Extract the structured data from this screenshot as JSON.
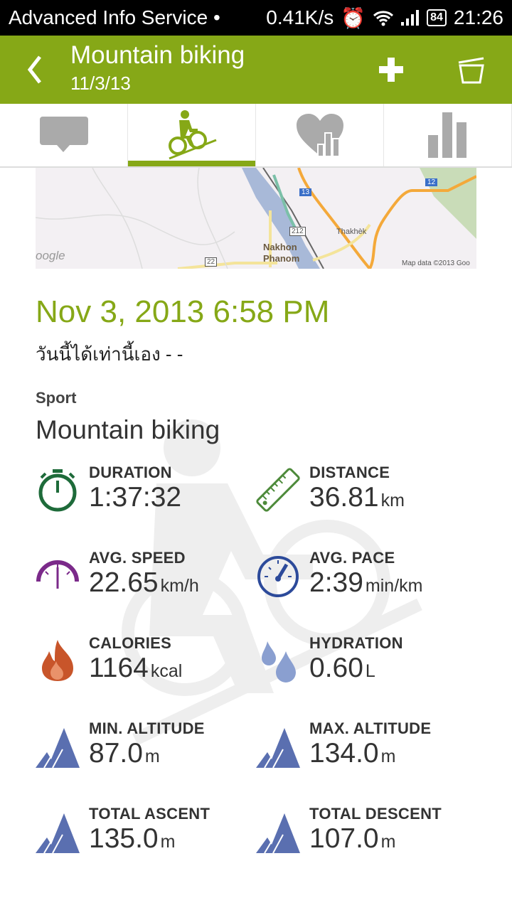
{
  "status_bar": {
    "carrier": "Advanced Info Service •",
    "speed": "0.41K/s",
    "battery": "84",
    "time": "21:26"
  },
  "app_bar": {
    "title": "Mountain biking",
    "subtitle": "11/3/13"
  },
  "tabs": [
    {
      "icon": "comment-icon"
    },
    {
      "icon": "mountain-bike-icon",
      "active": true
    },
    {
      "icon": "heart-stats-icon"
    },
    {
      "icon": "bar-chart-icon"
    }
  ],
  "map": {
    "labels": {
      "city1_a": "Nakhon",
      "city1_b": "Phanom",
      "city2": "Thakhèk",
      "r13": "13",
      "r12": "12",
      "r212": "212",
      "r22": "22",
      "google": "oogle",
      "attribution": "Map data ©2013 Goo"
    }
  },
  "session": {
    "date": "Nov 3, 2013 6:58 PM",
    "note": "วันนี้ได้เท่านี้เอง - -",
    "sport_label": "Sport",
    "sport_value": "Mountain biking"
  },
  "stats": [
    {
      "label": "DURATION",
      "value": "1:37:32",
      "unit": "",
      "icon": "stopwatch-icon"
    },
    {
      "label": "DISTANCE",
      "value": "36.81",
      "unit": "km",
      "icon": "ruler-icon"
    },
    {
      "label": "AVG. SPEED",
      "value": "22.65",
      "unit": "km/h",
      "icon": "speedometer-icon"
    },
    {
      "label": "AVG. PACE",
      "value": "2:39",
      "unit": "min/km",
      "icon": "gauge-icon"
    },
    {
      "label": "CALORIES",
      "value": "1164",
      "unit": "kcal",
      "icon": "flame-icon"
    },
    {
      "label": "HYDRATION",
      "value": "0.60",
      "unit": "L",
      "icon": "water-drops-icon"
    },
    {
      "label": "MIN. ALTITUDE",
      "value": "87.0",
      "unit": "m",
      "icon": "mountain-icon"
    },
    {
      "label": "MAX. ALTITUDE",
      "value": "134.0",
      "unit": "m",
      "icon": "mountain-icon"
    },
    {
      "label": "TOTAL ASCENT",
      "value": "135.0",
      "unit": "m",
      "icon": "mountain-icon"
    },
    {
      "label": "TOTAL DESCENT",
      "value": "107.0",
      "unit": "m",
      "icon": "mountain-icon"
    }
  ],
  "colors": {
    "accent": "#86a817",
    "tab_icon": "#aaaaaa",
    "duration": "#1e6b3a",
    "distance": "#4d8a3a",
    "speed": "#7b2a8a",
    "pace": "#2c4a9a",
    "calories": "#c8552a",
    "hydration": "#8a9fd0",
    "altitude": "#5a6fb0"
  }
}
